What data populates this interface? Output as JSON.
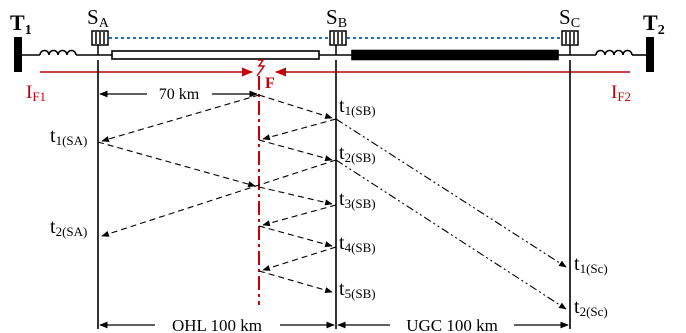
{
  "terminals": {
    "t1": {
      "main": "T",
      "sub": "1"
    },
    "t2": {
      "main": "T",
      "sub": "2"
    }
  },
  "sensors": {
    "a": {
      "main": "S",
      "sub": "A"
    },
    "b": {
      "main": "S",
      "sub": "B"
    },
    "c": {
      "main": "S",
      "sub": "C"
    }
  },
  "currents": {
    "if1": {
      "main": "I",
      "sub": "F1"
    },
    "if2": {
      "main": "I",
      "sub": "F2"
    }
  },
  "fault": {
    "label": "F",
    "distance_label": "70 km"
  },
  "sections": {
    "ohl": {
      "label": "OHL 100 km"
    },
    "ugc": {
      "label": "UGC 100 km"
    }
  },
  "times_sa": [
    {
      "main": "t",
      "sub": "1(SA)"
    },
    {
      "main": "t",
      "sub": "2(SA)"
    }
  ],
  "times_sb": [
    {
      "main": "t",
      "sub": "1(SB)"
    },
    {
      "main": "t",
      "sub": "2(SB)"
    },
    {
      "main": "t",
      "sub": "3(SB)"
    },
    {
      "main": "t",
      "sub": "4(SB)"
    },
    {
      "main": "t",
      "sub": "5(SB)"
    }
  ],
  "times_sc": [
    {
      "main": "t",
      "sub": "1(Sc)"
    },
    {
      "main": "t",
      "sub": "2(Sc)"
    }
  ],
  "colors": {
    "ink": "#000000",
    "fault": "#c0000a",
    "comm_link": "#1f6fc5"
  },
  "icons": {
    "sensor": "sensor-box-icon",
    "inductor": "inductor-coil-icon",
    "fault": "fault-lightning-icon"
  }
}
